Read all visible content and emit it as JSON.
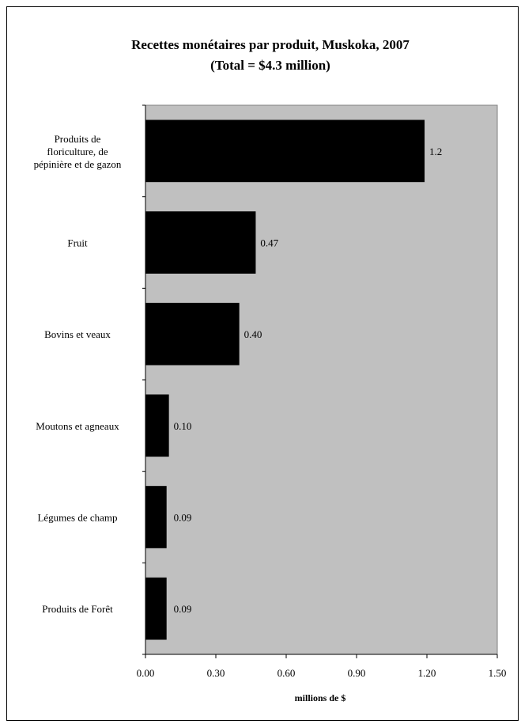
{
  "chart_data": {
    "type": "bar",
    "orientation": "horizontal",
    "title": "Recettes monétaires par produit, Muskoka, 2007",
    "subtitle": "(Total = $4.3 million)",
    "xlabel": "millions de $",
    "ylabel": "",
    "categories": [
      [
        "Produits de",
        "floriculture, de",
        "pépinière et de gazon"
      ],
      [
        "Fruit"
      ],
      [
        "Bovins et veaux"
      ],
      [
        "Moutons et agneaux"
      ],
      [
        "Légumes de champ"
      ],
      [
        "Produits de Forêt"
      ]
    ],
    "values": [
      1.19,
      0.47,
      0.4,
      0.1,
      0.09,
      0.09
    ],
    "value_labels": [
      "1.2",
      "0.47",
      "0.40",
      "0.10",
      "0.09",
      "0.09"
    ],
    "xlim": [
      0,
      1.5
    ],
    "xticks": [
      "0.00",
      "0.30",
      "0.60",
      "0.90",
      "1.20",
      "1.50"
    ],
    "grid": false,
    "legend": "none",
    "colors": {
      "bar": "#000000",
      "plot_background": "#c0c0c0",
      "page_background": "#ffffff"
    }
  }
}
